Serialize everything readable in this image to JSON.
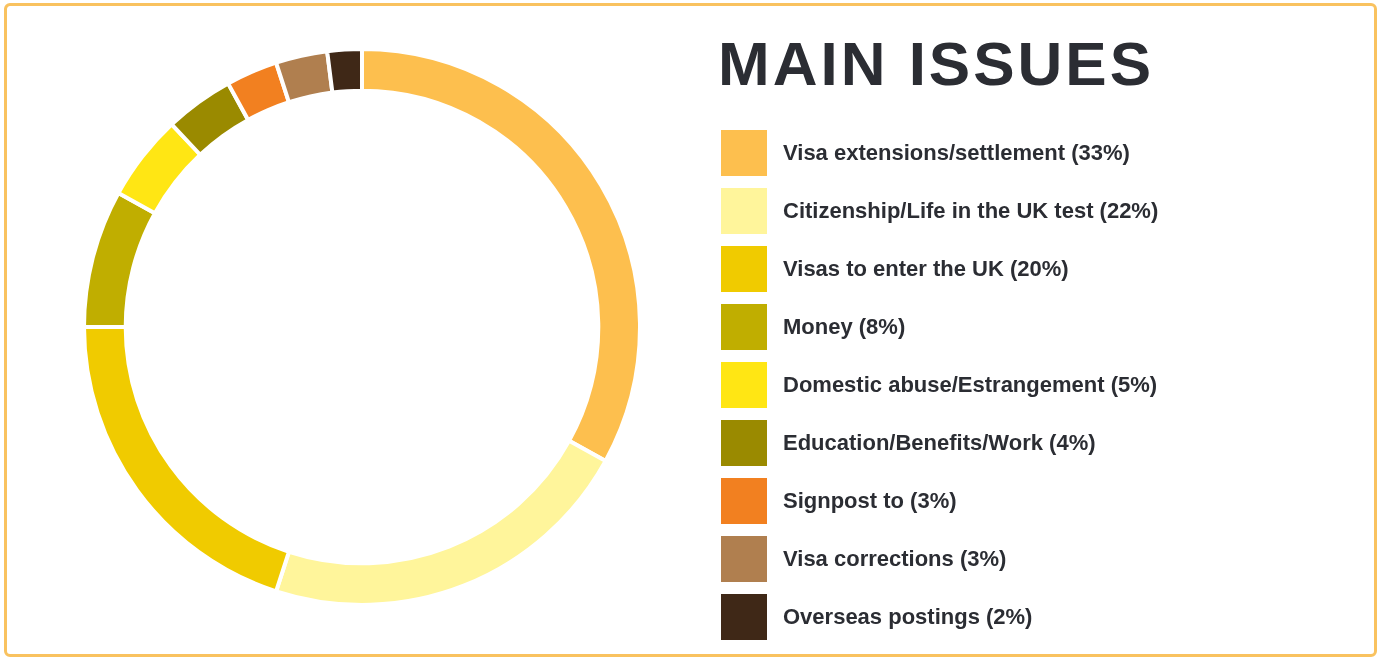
{
  "chart_data": {
    "type": "donut",
    "title": "MAIN ISSUES",
    "categories": [
      "Visa extensions/settlement (33%)",
      "Citizenship/Life in the UK test (22%)",
      "Visas to enter the UK (20%)",
      "Money (8%)",
      "Domestic abuse/Estrangement (5%)",
      "Education/Benefits/Work (4%)",
      "Signpost to (3%)",
      "Visa corrections (3%)",
      "Overseas postings (2%)"
    ],
    "values": [
      33,
      22,
      20,
      8,
      5,
      4,
      3,
      3,
      2
    ],
    "colors": [
      "#fdbf4e",
      "#fff59b",
      "#f0cb00",
      "#c0ae00",
      "#ffe614",
      "#9a8a00",
      "#f28020",
      "#b07f4f",
      "#3f2817"
    ],
    "legend": "right"
  }
}
